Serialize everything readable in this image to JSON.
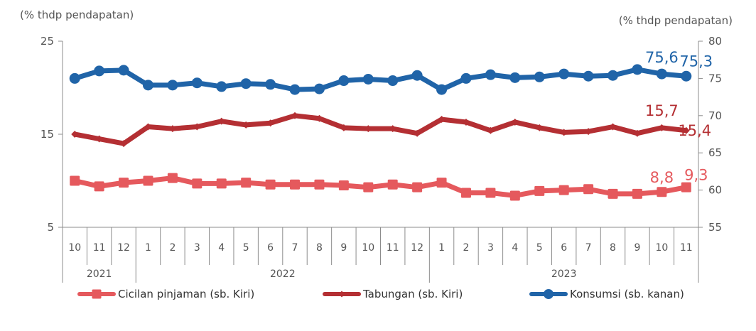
{
  "chart_data": {
    "type": "line",
    "y_left": {
      "label": "(% thdp pendapatan)",
      "range": [
        5,
        25
      ],
      "ticks": [
        "25",
        "15",
        "5"
      ]
    },
    "y_right": {
      "label": "(% thdp pendapatan)",
      "range": [
        55,
        80
      ],
      "ticks": [
        "80",
        "75",
        "70",
        "65",
        "60",
        "55"
      ]
    },
    "months": [
      "10",
      "11",
      "12",
      "1",
      "2",
      "3",
      "4",
      "5",
      "6",
      "7",
      "8",
      "9",
      "10",
      "11",
      "12",
      "1",
      "2",
      "3",
      "4",
      "5",
      "6",
      "7",
      "8",
      "9",
      "10",
      "11"
    ],
    "years": [
      {
        "label": "2021",
        "start": 0,
        "end": 2
      },
      {
        "label": "2022",
        "start": 3,
        "end": 14
      },
      {
        "label": "2023",
        "start": 15,
        "end": 25
      }
    ],
    "series": [
      {
        "name": "Cicilan pinjaman (sb. Kiri)",
        "axis": "left",
        "color": "#E5595D",
        "marker": "square",
        "values": [
          10.0,
          9.4,
          9.8,
          10.0,
          10.3,
          9.7,
          9.7,
          9.8,
          9.6,
          9.6,
          9.6,
          9.5,
          9.3,
          9.6,
          9.3,
          9.8,
          8.7,
          8.7,
          8.4,
          8.9,
          9.0,
          9.1,
          8.6,
          8.6,
          8.8,
          9.3
        ]
      },
      {
        "name": "Tabungan (sb. Kiri)",
        "axis": "left",
        "color": "#B42F33",
        "marker": "diamond",
        "values": [
          15.0,
          14.5,
          14.0,
          15.8,
          15.6,
          15.8,
          16.4,
          16.0,
          16.2,
          17.0,
          16.7,
          15.7,
          15.6,
          15.6,
          15.1,
          16.6,
          16.3,
          15.4,
          16.3,
          15.7,
          15.2,
          15.3,
          15.8,
          15.1,
          15.7,
          15.4
        ]
      },
      {
        "name": "Konsumsi (sb. kanan)",
        "axis": "right",
        "color": "#2064A8",
        "marker": "circle",
        "values": [
          75.0,
          76.0,
          76.1,
          74.1,
          74.1,
          74.4,
          73.9,
          74.3,
          74.2,
          73.5,
          73.6,
          74.7,
          74.9,
          74.7,
          75.4,
          73.5,
          75.0,
          75.5,
          75.1,
          75.2,
          75.6,
          75.3,
          75.4,
          76.2,
          75.6,
          75.3
        ]
      }
    ],
    "annotations": [
      {
        "series": 2,
        "index": 24,
        "text": "75,6"
      },
      {
        "series": 2,
        "index": 25,
        "text": "75,3"
      },
      {
        "series": 1,
        "index": 24,
        "text": "15,7"
      },
      {
        "series": 1,
        "index": 25,
        "text": "15,4"
      },
      {
        "series": 0,
        "index": 24,
        "text": "8,8"
      },
      {
        "series": 0,
        "index": 25,
        "text": "9,3"
      }
    ]
  }
}
